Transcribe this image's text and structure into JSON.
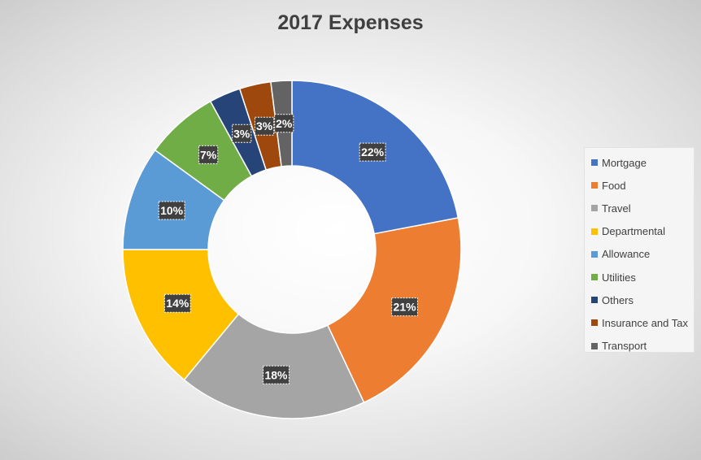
{
  "chart_data": {
    "type": "donut",
    "title": "2017 Expenses",
    "categories": [
      "Mortgage",
      "Food",
      "Travel",
      "Departmental",
      "Allowance",
      "Utilities",
      "Others",
      "Insurance and Tax",
      "Transport"
    ],
    "values": [
      22,
      21,
      18,
      14,
      10,
      7,
      3,
      3,
      2
    ],
    "data_labels": [
      "22%",
      "21%",
      "18%",
      "14%",
      "10%",
      "7%",
      "3%",
      "3%",
      "2%"
    ],
    "colors": [
      "#4472C4",
      "#ED7D31",
      "#A5A5A5",
      "#FFC000",
      "#5B9BD5",
      "#70AD47",
      "#264478",
      "#9E480E",
      "#636363"
    ],
    "legend_position": "right"
  }
}
